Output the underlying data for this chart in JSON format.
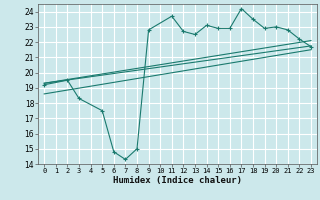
{
  "title": "",
  "xlabel": "Humidex (Indice chaleur)",
  "ylabel": "",
  "bg_color": "#cce8eb",
  "grid_color": "#ffffff",
  "line_color": "#1a7a6e",
  "xlim": [
    -0.5,
    23.5
  ],
  "ylim": [
    14,
    24.5
  ],
  "xticks": [
    0,
    1,
    2,
    3,
    4,
    5,
    6,
    7,
    8,
    9,
    10,
    11,
    12,
    13,
    14,
    15,
    16,
    17,
    18,
    19,
    20,
    21,
    22,
    23
  ],
  "yticks": [
    14,
    15,
    16,
    17,
    18,
    19,
    20,
    21,
    22,
    23,
    24
  ],
  "main_x": [
    0,
    2,
    3,
    5,
    6,
    7,
    8,
    9,
    11,
    12,
    13,
    14,
    15,
    16,
    17,
    18,
    19,
    20,
    21,
    22,
    23
  ],
  "main_y": [
    19.2,
    19.5,
    18.3,
    17.5,
    14.8,
    14.3,
    15.0,
    22.8,
    23.7,
    22.7,
    22.5,
    23.1,
    22.9,
    22.9,
    24.2,
    23.5,
    22.9,
    23.0,
    22.8,
    22.2,
    21.7
  ],
  "trend1_x": [
    0,
    23
  ],
  "trend1_y": [
    19.3,
    22.1
  ],
  "trend2_x": [
    0,
    23
  ],
  "trend2_y": [
    19.3,
    21.75
  ],
  "trend3_x": [
    0,
    23
  ],
  "trend3_y": [
    18.6,
    21.5
  ]
}
